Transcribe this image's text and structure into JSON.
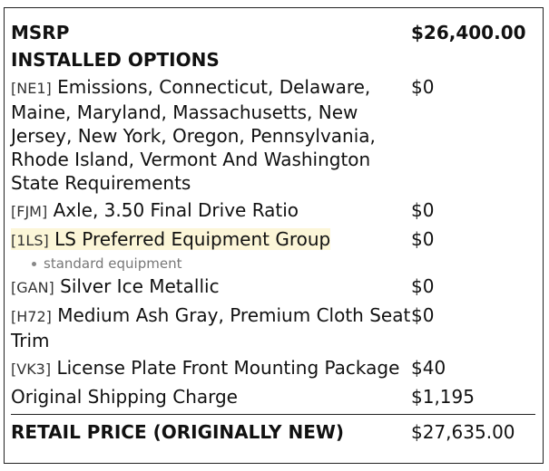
{
  "summary": {
    "msrp_label": "MSRP",
    "msrp": "$26,400.00",
    "options_heading": "INSTALLED OPTIONS"
  },
  "options": [
    {
      "code": "[NE1]",
      "description": "Emissions, Connecticut, Delaware, Maine, Maryland, Massachusetts, New Jersey, New York, Oregon, Pennsylvania, Rhode Island, Vermont And Washington State Requirements",
      "price": "$0"
    },
    {
      "code": "[FJM]",
      "description": "Axle, 3.50 Final Drive Ratio",
      "price": "$0"
    },
    {
      "code": "[1LS]",
      "description": "LS Preferred Equipment Group",
      "price": "$0",
      "highlighted": true,
      "notes": [
        "standard equipment"
      ]
    },
    {
      "code": "[GAN]",
      "description": "Silver Ice Metallic",
      "price": "$0"
    },
    {
      "code": "[H72]",
      "description": "Medium Ash Gray, Premium Cloth Seat Trim",
      "price": "$0"
    },
    {
      "code": "[VK3]",
      "description": "License Plate Front Mounting Package",
      "price": "$40"
    }
  ],
  "shipping": {
    "label": "Original Shipping Charge",
    "price": "$1,195"
  },
  "total": {
    "label": "RETAIL PRICE (ORIGINALLY NEW)",
    "price": "$27,635.00"
  }
}
